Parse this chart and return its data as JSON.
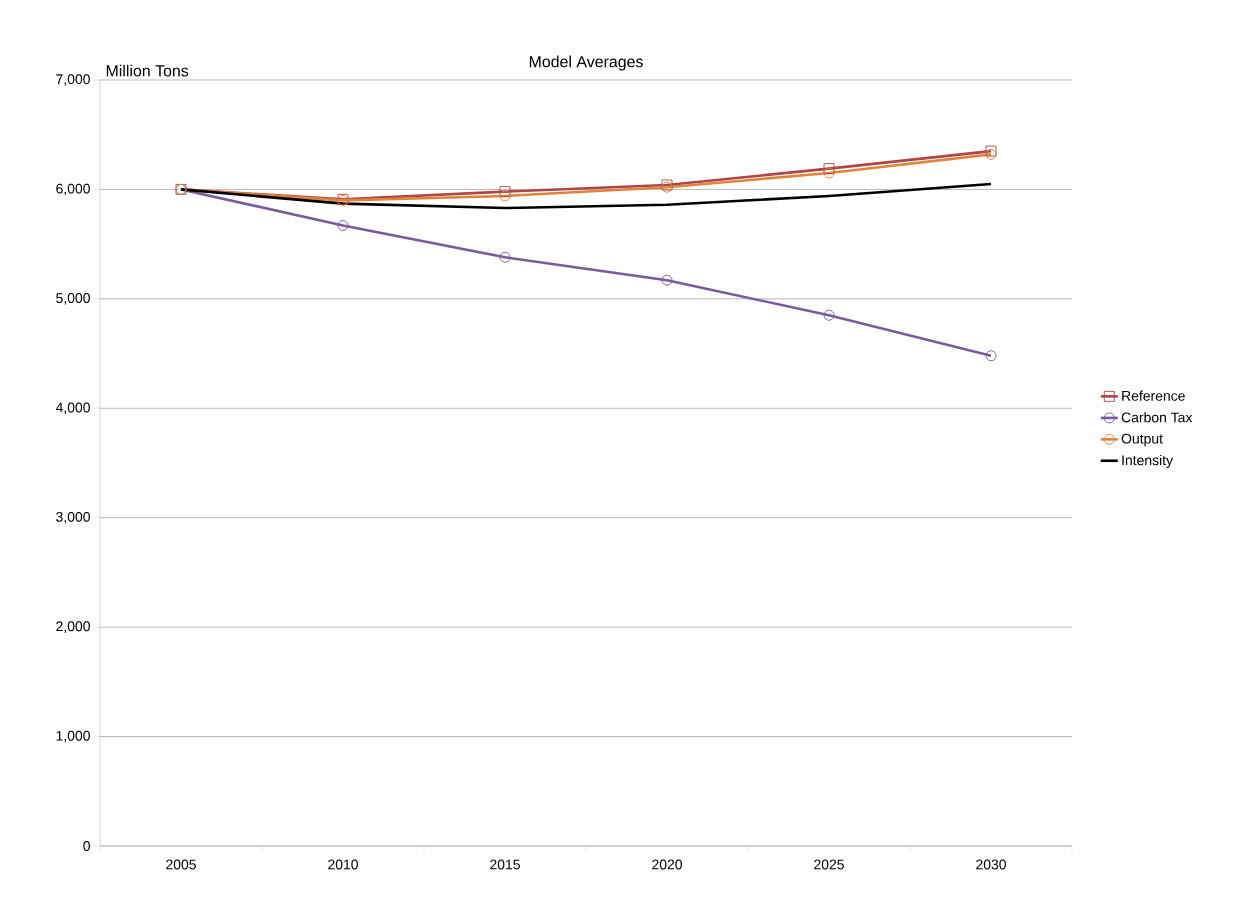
{
  "chart_data": {
    "type": "line",
    "title": "Model Averages",
    "ylabel": "Million Tons",
    "categories": [
      "2005",
      "2010",
      "2015",
      "2020",
      "2025",
      "2030"
    ],
    "series": [
      {
        "name": "Reference",
        "color": "#b04545",
        "marker": "square",
        "values": [
          6000,
          5910,
          5980,
          6040,
          6190,
          6350
        ]
      },
      {
        "name": "Carbon Tax",
        "color": "#7a5a9e",
        "marker": "circle",
        "values": [
          6000,
          5670,
          5380,
          5170,
          4850,
          4480
        ]
      },
      {
        "name": "Output",
        "color": "#e0843a",
        "marker": "circle",
        "values": [
          6000,
          5900,
          5940,
          6020,
          6150,
          6320
        ]
      },
      {
        "name": "Intensity",
        "color": "#000000",
        "marker": "none",
        "values": [
          6000,
          5870,
          5830,
          5860,
          5940,
          6050
        ]
      }
    ],
    "ylim": [
      0,
      7000
    ],
    "yticks": [
      {
        "value": 0,
        "label": "0"
      },
      {
        "value": 1000,
        "label": "1,000"
      },
      {
        "value": 2000,
        "label": "2,000"
      },
      {
        "value": 3000,
        "label": "3,000"
      },
      {
        "value": 4000,
        "label": "4,000"
      },
      {
        "value": 5000,
        "label": "5,000"
      },
      {
        "value": 6000,
        "label": "6,000"
      },
      {
        "value": 7000,
        "label": "7,000"
      }
    ],
    "grid": "y",
    "legend": "right"
  }
}
